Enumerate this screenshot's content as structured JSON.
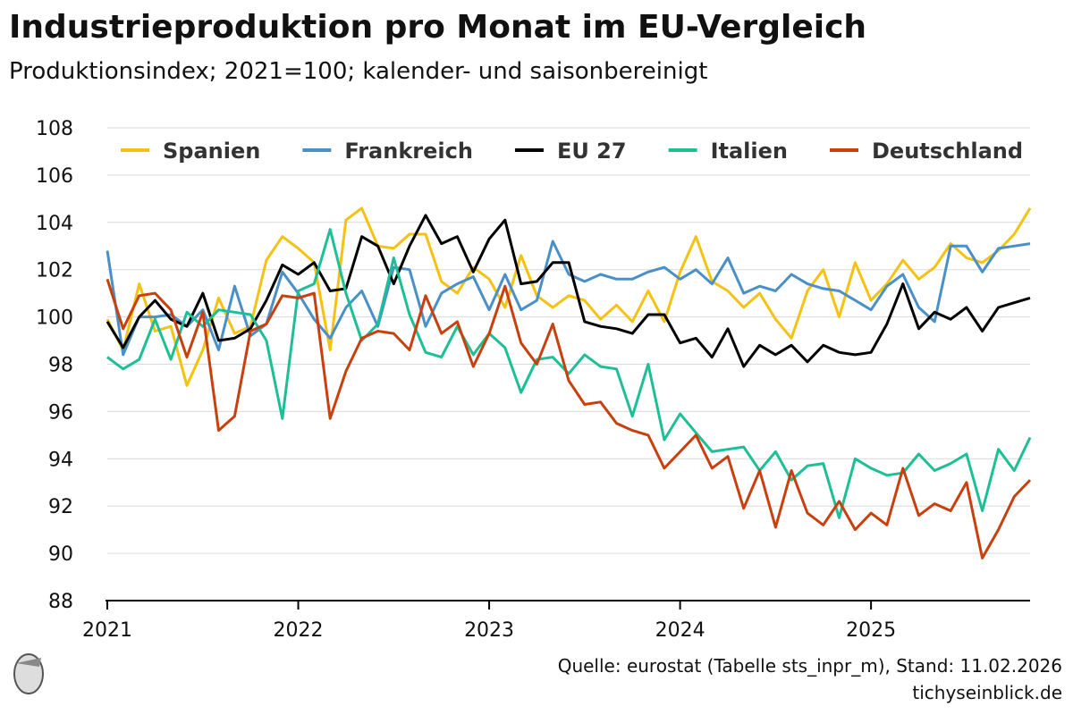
{
  "chart_data": {
    "type": "line",
    "title": "Industrieproduktion pro Monat im EU-Vergleich",
    "subtitle": "Produktionsindex; 2021=100; kalender- und saisonbereinigt",
    "source": "Quelle: eurostat (Tabelle sts_inpr_m), Stand: 11.02.2026",
    "site": "tichyseinblick.de",
    "x": [
      2021,
      2021.083,
      2021.167,
      2021.25,
      2021.333,
      2021.417,
      2021.5,
      2021.583,
      2021.667,
      2021.75,
      2021.833,
      2021.917,
      2022,
      2022.083,
      2022.167,
      2022.25,
      2022.333,
      2022.417,
      2022.5,
      2022.583,
      2022.667,
      2022.75,
      2022.833,
      2022.917,
      2023,
      2023.083,
      2023.167,
      2023.25,
      2023.333,
      2023.417,
      2023.5,
      2023.583,
      2023.667,
      2023.75,
      2023.833,
      2023.917,
      2024,
      2024.083,
      2024.167,
      2024.25,
      2024.333,
      2024.417,
      2024.5,
      2024.583,
      2024.667,
      2024.75,
      2024.833,
      2024.917,
      2025,
      2025.083,
      2025.167,
      2025.25,
      2025.333,
      2025.417,
      2025.5,
      2025.583,
      2025.667,
      2025.75,
      2025.833
    ],
    "xlim": [
      2021,
      2025.833
    ],
    "xticks": [
      2021,
      2022,
      2023,
      2024,
      2025
    ],
    "ylim": [
      88,
      108
    ],
    "yticks": [
      88,
      90,
      92,
      94,
      96,
      98,
      100,
      102,
      104,
      106,
      108
    ],
    "grid": true,
    "legend": "top",
    "series": [
      {
        "name": "Spanien",
        "color": "#f5c211",
        "values": [
          99.9,
          98.6,
          101.4,
          99.4,
          99.6,
          97.1,
          98.6,
          100.8,
          99.3,
          99.6,
          102.4,
          103.4,
          102.9,
          102.3,
          98.6,
          104.1,
          104.6,
          103.0,
          102.9,
          103.5,
          103.5,
          101.5,
          101.0,
          102.1,
          101.6,
          100.4,
          102.6,
          100.9,
          100.4,
          100.9,
          100.7,
          99.9,
          100.5,
          99.8,
          101.1,
          99.8,
          101.9,
          103.4,
          101.5,
          101.1,
          100.4,
          101.0,
          99.9,
          99.1,
          101.1,
          102.0,
          100.0,
          102.3,
          100.7,
          101.4,
          102.4,
          101.6,
          102.1,
          103.1,
          102.5,
          102.3,
          102.8,
          103.5,
          104.6
        ]
      },
      {
        "name": "Frankreich",
        "color": "#4a90c8",
        "values": [
          102.8,
          98.4,
          100.0,
          100.0,
          100.1,
          99.6,
          100.3,
          98.6,
          101.3,
          99.2,
          99.7,
          101.9,
          101.0,
          99.9,
          99.1,
          100.4,
          101.1,
          99.6,
          102.1,
          102.0,
          99.6,
          101.0,
          101.4,
          101.7,
          100.3,
          101.8,
          100.3,
          100.7,
          103.2,
          101.8,
          101.5,
          101.8,
          101.6,
          101.6,
          101.9,
          102.1,
          101.6,
          102.0,
          101.4,
          102.5,
          101.0,
          101.3,
          101.1,
          101.8,
          101.4,
          101.2,
          101.1,
          100.7,
          100.3,
          101.3,
          101.8,
          100.4,
          99.8,
          103.0,
          103.0,
          101.9,
          102.9,
          103.0,
          103.1
        ]
      },
      {
        "name": "EU 27",
        "color": "#000000",
        "values": [
          99.8,
          98.7,
          100.0,
          100.7,
          99.9,
          99.6,
          101.0,
          99.0,
          99.1,
          99.5,
          100.7,
          102.2,
          101.8,
          102.3,
          101.1,
          101.2,
          103.4,
          103.0,
          101.4,
          103.0,
          104.3,
          103.1,
          103.4,
          101.9,
          103.3,
          104.1,
          101.4,
          101.5,
          102.3,
          102.3,
          99.8,
          99.6,
          99.5,
          99.3,
          100.1,
          100.1,
          98.9,
          99.1,
          98.3,
          99.5,
          97.9,
          98.8,
          98.4,
          98.8,
          98.1,
          98.8,
          98.5,
          98.4,
          98.5,
          99.7,
          101.4,
          99.5,
          100.2,
          99.9,
          100.4,
          99.4,
          100.4,
          100.6,
          100.8
        ]
      },
      {
        "name": "Italien",
        "color": "#1dbf96",
        "values": [
          98.3,
          97.8,
          98.2,
          99.9,
          98.2,
          100.2,
          99.6,
          100.3,
          100.2,
          100.1,
          99.0,
          95.7,
          101.1,
          101.4,
          103.7,
          101.0,
          99.0,
          99.7,
          102.5,
          100.1,
          98.5,
          98.3,
          99.6,
          98.4,
          99.3,
          98.7,
          96.8,
          98.2,
          98.3,
          97.6,
          98.4,
          97.9,
          97.8,
          95.8,
          98.0,
          94.8,
          95.9,
          95.1,
          94.3,
          94.4,
          94.5,
          93.5,
          94.3,
          93.1,
          93.7,
          93.8,
          91.5,
          94.0,
          93.6,
          93.3,
          93.4,
          94.2,
          93.5,
          93.8,
          94.2,
          91.8,
          94.4,
          93.5,
          94.9
        ]
      },
      {
        "name": "Deutschland",
        "color": "#c8400e",
        "values": [
          101.6,
          99.5,
          100.9,
          101.0,
          100.3,
          98.3,
          100.2,
          95.2,
          95.8,
          99.4,
          99.7,
          100.9,
          100.8,
          101.0,
          95.7,
          97.7,
          99.1,
          99.4,
          99.3,
          98.6,
          100.9,
          99.3,
          99.8,
          97.9,
          99.3,
          101.3,
          98.9,
          98.0,
          99.7,
          97.3,
          96.3,
          96.4,
          95.5,
          95.2,
          95.0,
          93.6,
          94.3,
          95.0,
          93.6,
          94.1,
          91.9,
          93.5,
          91.1,
          93.5,
          91.7,
          91.2,
          92.2,
          91.0,
          91.7,
          91.2,
          93.6,
          91.6,
          92.1,
          91.8,
          93.0,
          89.8,
          91.0,
          92.4,
          93.1
        ]
      }
    ]
  }
}
